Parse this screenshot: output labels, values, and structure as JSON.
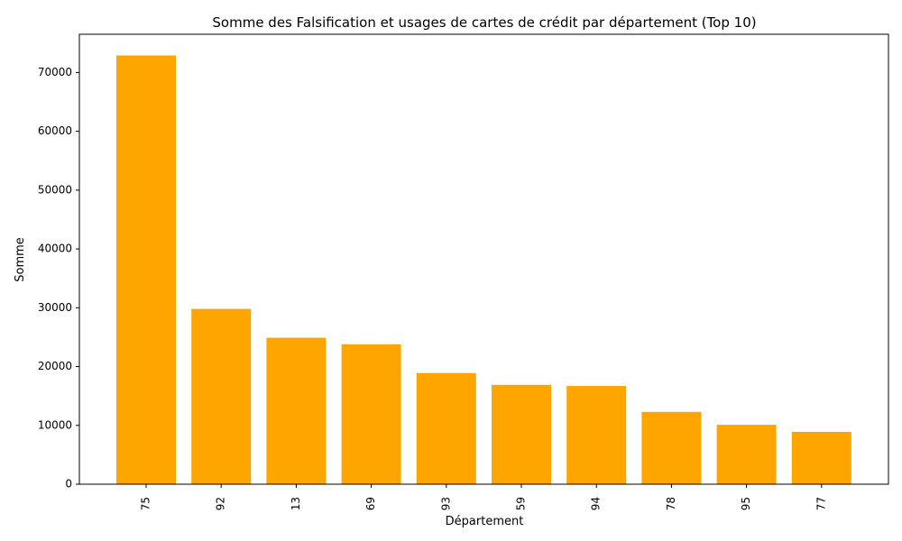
{
  "chart_data": {
    "type": "bar",
    "title": "Somme des Falsification et usages de cartes de crédit par département (Top 10)",
    "xlabel": "Département",
    "ylabel": "Somme",
    "categories": [
      "75",
      "92",
      "13",
      "69",
      "93",
      "59",
      "94",
      "78",
      "95",
      "77"
    ],
    "values": [
      72900,
      29800,
      24900,
      23800,
      18900,
      16900,
      16700,
      12300,
      10100,
      8900
    ],
    "ylim": [
      0,
      76500
    ],
    "yticks": [
      0,
      10000,
      20000,
      30000,
      40000,
      50000,
      60000,
      70000
    ],
    "bar_color": "#ffa500",
    "grid": false,
    "legend": "none"
  }
}
